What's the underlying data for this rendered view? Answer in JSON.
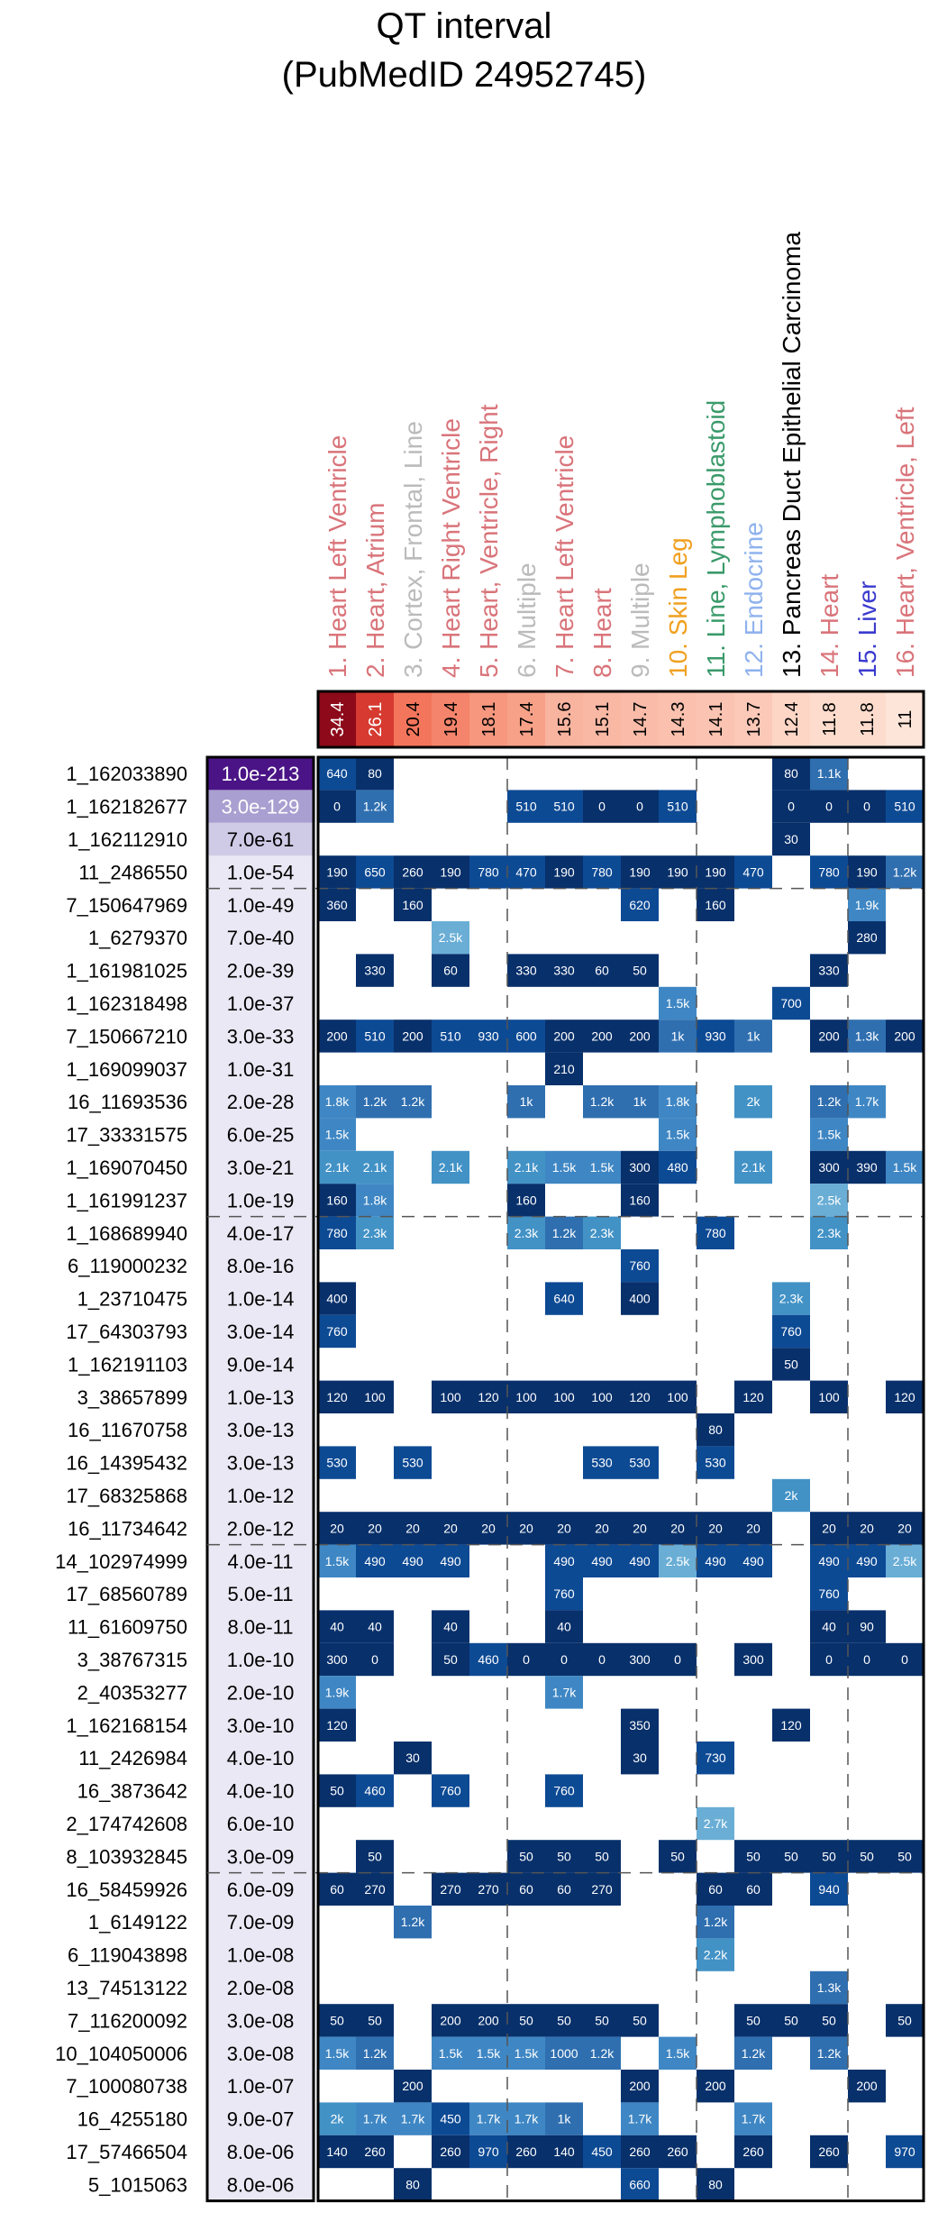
{
  "chart_data": {
    "type": "heatmap",
    "title": "QT interval",
    "subtitle": "(PubMedID 24952745)",
    "columns": [
      {
        "label": "1. Heart Left Ventricle",
        "value": "34.4",
        "label_color": "#d9747a",
        "fill": "#8c0a1a",
        "value_color": "#ffffff"
      },
      {
        "label": "2. Heart, Atrium",
        "value": "26.1",
        "label_color": "#d9747a",
        "fill": "#d63a30",
        "value_color": "#ffffff"
      },
      {
        "label": "3. Cortex, Frontal, Line",
        "value": "20.4",
        "label_color": "#bbbbbb",
        "fill": "#f3755c",
        "value_color": "#000000"
      },
      {
        "label": "4. Heart Right Ventricle",
        "value": "19.4",
        "label_color": "#d9747a",
        "fill": "#f4846b",
        "value_color": "#000000"
      },
      {
        "label": "5. Heart, Ventricle, Right",
        "value": "18.1",
        "label_color": "#d9747a",
        "fill": "#f6977e",
        "value_color": "#000000"
      },
      {
        "label": "6. Multiple",
        "value": "17.4",
        "label_color": "#bbbbbb",
        "fill": "#f7a188",
        "value_color": "#000000"
      },
      {
        "label": "7. Heart Left Ventricle",
        "value": "15.6",
        "label_color": "#d9747a",
        "fill": "#f9b49f",
        "value_color": "#000000"
      },
      {
        "label": "8. Heart",
        "value": "15.1",
        "label_color": "#d9747a",
        "fill": "#f9b8a4",
        "value_color": "#000000"
      },
      {
        "label": "9. Multiple",
        "value": "14.7",
        "label_color": "#bbbbbb",
        "fill": "#fabca9",
        "value_color": "#000000"
      },
      {
        "label": "10. Skin Leg",
        "value": "14.3",
        "label_color": "#f0a020",
        "fill": "#fbc1ae",
        "value_color": "#000000"
      },
      {
        "label": "11. Line, Lymphoblastoid",
        "value": "14.1",
        "label_color": "#3a9a6a",
        "fill": "#fbc3b1",
        "value_color": "#000000"
      },
      {
        "label": "12. Endocrine",
        "value": "13.7",
        "label_color": "#8fb2ee",
        "fill": "#fcc8b7",
        "value_color": "#000000"
      },
      {
        "label": "13. Pancreas Duct Epithelial Carcinoma",
        "value": "12.4",
        "label_color": "#000000",
        "fill": "#fdd6c6",
        "value_color": "#000000"
      },
      {
        "label": "14. Heart",
        "value": "11.8",
        "label_color": "#d9747a",
        "fill": "#fddccd",
        "value_color": "#000000"
      },
      {
        "label": "15. Liver",
        "value": "11.8",
        "label_color": "#3a3acf",
        "fill": "#fddccd",
        "value_color": "#000000"
      },
      {
        "label": "16. Heart, Ventricle, Left",
        "value": "11",
        "label_color": "#d9747a",
        "fill": "#fee5d9",
        "value_color": "#000000"
      }
    ],
    "rows": [
      {
        "name": "1_162033890",
        "pvalue": "1.0e-213",
        "cells": [
          "640",
          "80",
          "",
          "",
          "",
          "",
          "",
          "",
          "",
          "",
          "",
          "",
          "80",
          "1.1k",
          "",
          ""
        ]
      },
      {
        "name": "1_162182677",
        "pvalue": "3.0e-129",
        "cells": [
          "0",
          "1.2k",
          "",
          "",
          "",
          "510",
          "510",
          "0",
          "0",
          "510",
          "",
          "",
          "0",
          "0",
          "0",
          "510"
        ]
      },
      {
        "name": "1_162112910",
        "pvalue": "7.0e-61",
        "cells": [
          "",
          "",
          "",
          "",
          "",
          "",
          "",
          "",
          "",
          "",
          "",
          "",
          "30",
          "",
          "",
          ""
        ]
      },
      {
        "name": "11_2486550",
        "pvalue": "1.0e-54",
        "cells": [
          "190",
          "650",
          "260",
          "190",
          "780",
          "470",
          "190",
          "780",
          "190",
          "190",
          "190",
          "470",
          "",
          "780",
          "190",
          "1.2k"
        ]
      },
      {
        "name": "7_150647969",
        "pvalue": "1.0e-49",
        "cells": [
          "360",
          "",
          "160",
          "",
          "",
          "",
          "",
          "",
          "620",
          "",
          "160",
          "",
          "",
          "",
          "1.9k",
          ""
        ]
      },
      {
        "name": "1_6279370",
        "pvalue": "7.0e-40",
        "cells": [
          "",
          "",
          "",
          "2.5k",
          "",
          "",
          "",
          "",
          "",
          "",
          "",
          "",
          "",
          "",
          "280",
          ""
        ]
      },
      {
        "name": "1_161981025",
        "pvalue": "2.0e-39",
        "cells": [
          "",
          "330",
          "",
          "60",
          "",
          "330",
          "330",
          "60",
          "50",
          "",
          "",
          "",
          "",
          "330",
          "",
          ""
        ]
      },
      {
        "name": "1_162318498",
        "pvalue": "1.0e-37",
        "cells": [
          "",
          "",
          "",
          "",
          "",
          "",
          "",
          "",
          "",
          "1.5k",
          "",
          "",
          "700",
          "",
          "",
          ""
        ]
      },
      {
        "name": "7_150667210",
        "pvalue": "3.0e-33",
        "cells": [
          "200",
          "510",
          "200",
          "510",
          "930",
          "600",
          "200",
          "200",
          "200",
          "1k",
          "930",
          "1k",
          "",
          "200",
          "1.3k",
          "200"
        ]
      },
      {
        "name": "1_169099037",
        "pvalue": "1.0e-31",
        "cells": [
          "",
          "",
          "",
          "",
          "",
          "",
          "210",
          "",
          "",
          "",
          "",
          "",
          "",
          "",
          "",
          ""
        ]
      },
      {
        "name": "16_11693536",
        "pvalue": "2.0e-28",
        "cells": [
          "1.8k",
          "1.2k",
          "1.2k",
          "",
          "",
          "1k",
          "",
          "1.2k",
          "1k",
          "1.8k",
          "",
          "2k",
          "",
          "1.2k",
          "1.7k",
          ""
        ]
      },
      {
        "name": "17_33331575",
        "pvalue": "6.0e-25",
        "cells": [
          "1.5k",
          "",
          "",
          "",
          "",
          "",
          "",
          "",
          "",
          "1.5k",
          "",
          "",
          "",
          "1.5k",
          "",
          ""
        ]
      },
      {
        "name": "1_169070450",
        "pvalue": "3.0e-21",
        "cells": [
          "2.1k",
          "2.1k",
          "",
          "2.1k",
          "",
          "2.1k",
          "1.5k",
          "1.5k",
          "300",
          "480",
          "",
          "2.1k",
          "",
          "300",
          "390",
          "1.5k"
        ]
      },
      {
        "name": "1_161991237",
        "pvalue": "1.0e-19",
        "cells": [
          "160",
          "1.8k",
          "",
          "",
          "",
          "160",
          "",
          "",
          "160",
          "",
          "",
          "",
          "",
          "2.5k",
          "",
          ""
        ]
      },
      {
        "name": "1_168689940",
        "pvalue": "4.0e-17",
        "cells": [
          "780",
          "2.3k",
          "",
          "",
          "",
          "2.3k",
          "1.2k",
          "2.3k",
          "",
          "",
          "780",
          "",
          "",
          "2.3k",
          "",
          ""
        ]
      },
      {
        "name": "6_119000232",
        "pvalue": "8.0e-16",
        "cells": [
          "",
          "",
          "",
          "",
          "",
          "",
          "",
          "",
          "760",
          "",
          "",
          "",
          "",
          "",
          "",
          ""
        ]
      },
      {
        "name": "1_23710475",
        "pvalue": "1.0e-14",
        "cells": [
          "400",
          "",
          "",
          "",
          "",
          "",
          "640",
          "",
          "400",
          "",
          "",
          "",
          "2.3k",
          "",
          "",
          ""
        ]
      },
      {
        "name": "17_64303793",
        "pvalue": "3.0e-14",
        "cells": [
          "760",
          "",
          "",
          "",
          "",
          "",
          "",
          "",
          "",
          "",
          "",
          "",
          "760",
          "",
          "",
          ""
        ]
      },
      {
        "name": "1_162191103",
        "pvalue": "9.0e-14",
        "cells": [
          "",
          "",
          "",
          "",
          "",
          "",
          "",
          "",
          "",
          "",
          "",
          "",
          "50",
          "",
          "",
          ""
        ]
      },
      {
        "name": "3_38657899",
        "pvalue": "1.0e-13",
        "cells": [
          "120",
          "100",
          "",
          "100",
          "120",
          "100",
          "100",
          "100",
          "120",
          "100",
          "",
          "120",
          "",
          "100",
          "",
          "120"
        ]
      },
      {
        "name": "16_11670758",
        "pvalue": "3.0e-13",
        "cells": [
          "",
          "",
          "",
          "",
          "",
          "",
          "",
          "",
          "",
          "",
          "80",
          "",
          "",
          "",
          "",
          ""
        ]
      },
      {
        "name": "16_14395432",
        "pvalue": "3.0e-13",
        "cells": [
          "530",
          "",
          "530",
          "",
          "",
          "",
          "",
          "530",
          "530",
          "",
          "530",
          "",
          "",
          "",
          "",
          ""
        ]
      },
      {
        "name": "17_68325868",
        "pvalue": "1.0e-12",
        "cells": [
          "",
          "",
          "",
          "",
          "",
          "",
          "",
          "",
          "",
          "",
          "",
          "",
          "2k",
          "",
          "",
          ""
        ]
      },
      {
        "name": "16_11734642",
        "pvalue": "2.0e-12",
        "cells": [
          "20",
          "20",
          "20",
          "20",
          "20",
          "20",
          "20",
          "20",
          "20",
          "20",
          "20",
          "20",
          "",
          "20",
          "20",
          "20"
        ]
      },
      {
        "name": "14_102974999",
        "pvalue": "4.0e-11",
        "cells": [
          "1.5k",
          "490",
          "490",
          "490",
          "",
          "",
          "490",
          "490",
          "490",
          "2.5k",
          "490",
          "490",
          "",
          "490",
          "490",
          "2.5k"
        ]
      },
      {
        "name": "17_68560789",
        "pvalue": "5.0e-11",
        "cells": [
          "",
          "",
          "",
          "",
          "",
          "",
          "760",
          "",
          "",
          "",
          "",
          "",
          "",
          "760",
          "",
          ""
        ]
      },
      {
        "name": "11_61609750",
        "pvalue": "8.0e-11",
        "cells": [
          "40",
          "40",
          "",
          "40",
          "",
          "",
          "40",
          "",
          "",
          "",
          "",
          "",
          "",
          "40",
          "90",
          ""
        ]
      },
      {
        "name": "3_38767315",
        "pvalue": "1.0e-10",
        "cells": [
          "300",
          "0",
          "",
          "50",
          "460",
          "0",
          "0",
          "0",
          "300",
          "0",
          "",
          "300",
          "",
          "0",
          "0",
          "0"
        ]
      },
      {
        "name": "2_40353277",
        "pvalue": "2.0e-10",
        "cells": [
          "1.9k",
          "",
          "",
          "",
          "",
          "",
          "1.7k",
          "",
          "",
          "",
          "",
          "",
          "",
          "",
          "",
          ""
        ]
      },
      {
        "name": "1_162168154",
        "pvalue": "3.0e-10",
        "cells": [
          "120",
          "",
          "",
          "",
          "",
          "",
          "",
          "",
          "350",
          "",
          "",
          "",
          "120",
          "",
          "",
          ""
        ]
      },
      {
        "name": "11_2426984",
        "pvalue": "4.0e-10",
        "cells": [
          "",
          "",
          "30",
          "",
          "",
          "",
          "",
          "",
          "30",
          "",
          "730",
          "",
          "",
          "",
          "",
          ""
        ]
      },
      {
        "name": "16_3873642",
        "pvalue": "4.0e-10",
        "cells": [
          "50",
          "460",
          "",
          "760",
          "",
          "",
          "760",
          "",
          "",
          "",
          "",
          "",
          "",
          "",
          "",
          ""
        ]
      },
      {
        "name": "2_174742608",
        "pvalue": "6.0e-10",
        "cells": [
          "",
          "",
          "",
          "",
          "",
          "",
          "",
          "",
          "",
          "",
          "2.7k",
          "",
          "",
          "",
          "",
          ""
        ]
      },
      {
        "name": "8_103932845",
        "pvalue": "3.0e-09",
        "cells": [
          "",
          "50",
          "",
          "",
          "",
          "50",
          "50",
          "50",
          "",
          "50",
          "",
          "50",
          "50",
          "50",
          "50",
          "50"
        ]
      },
      {
        "name": "16_58459926",
        "pvalue": "6.0e-09",
        "cells": [
          "60",
          "270",
          "",
          "270",
          "270",
          "60",
          "60",
          "270",
          "",
          "",
          "60",
          "60",
          "",
          "940",
          "",
          ""
        ]
      },
      {
        "name": "1_6149122",
        "pvalue": "7.0e-09",
        "cells": [
          "",
          "",
          "1.2k",
          "",
          "",
          "",
          "",
          "",
          "",
          "",
          "1.2k",
          "",
          "",
          "",
          "",
          ""
        ]
      },
      {
        "name": "6_119043898",
        "pvalue": "1.0e-08",
        "cells": [
          "",
          "",
          "",
          "",
          "",
          "",
          "",
          "",
          "",
          "",
          "2.2k",
          "",
          "",
          "",
          "",
          ""
        ]
      },
      {
        "name": "13_74513122",
        "pvalue": "2.0e-08",
        "cells": [
          "",
          "",
          "",
          "",
          "",
          "",
          "",
          "",
          "",
          "",
          "",
          "",
          "",
          "1.3k",
          "",
          ""
        ]
      },
      {
        "name": "7_116200092",
        "pvalue": "3.0e-08",
        "cells": [
          "50",
          "50",
          "",
          "200",
          "200",
          "50",
          "50",
          "50",
          "50",
          "",
          "",
          "50",
          "50",
          "50",
          "",
          "50"
        ]
      },
      {
        "name": "10_104050006",
        "pvalue": "3.0e-08",
        "cells": [
          "1.5k",
          "1.2k",
          "",
          "1.5k",
          "1.5k",
          "1.5k",
          "1000",
          "1.2k",
          "",
          "1.5k",
          "",
          "1.2k",
          "",
          "1.2k",
          "",
          ""
        ]
      },
      {
        "name": "7_100080738",
        "pvalue": "1.0e-07",
        "cells": [
          "",
          "",
          "200",
          "",
          "",
          "",
          "",
          "",
          "200",
          "",
          "200",
          "",
          "",
          "",
          "200",
          ""
        ]
      },
      {
        "name": "16_4255180",
        "pvalue": "9.0e-07",
        "cells": [
          "2k",
          "1.7k",
          "1.7k",
          "450",
          "1.7k",
          "1.7k",
          "1k",
          "",
          "1.7k",
          "",
          "",
          "1.7k",
          "",
          "",
          "",
          ""
        ]
      },
      {
        "name": "17_57466504",
        "pvalue": "8.0e-06",
        "cells": [
          "140",
          "260",
          "",
          "260",
          "970",
          "260",
          "140",
          "450",
          "260",
          "260",
          "",
          "260",
          "",
          "260",
          "",
          "970"
        ]
      },
      {
        "name": "5_1015063",
        "pvalue": "8.0e-06",
        "cells": [
          "",
          "",
          "80",
          "",
          "",
          "",
          "",
          "",
          "660",
          "",
          "80",
          "",
          "",
          "",
          "",
          ""
        ]
      }
    ]
  }
}
